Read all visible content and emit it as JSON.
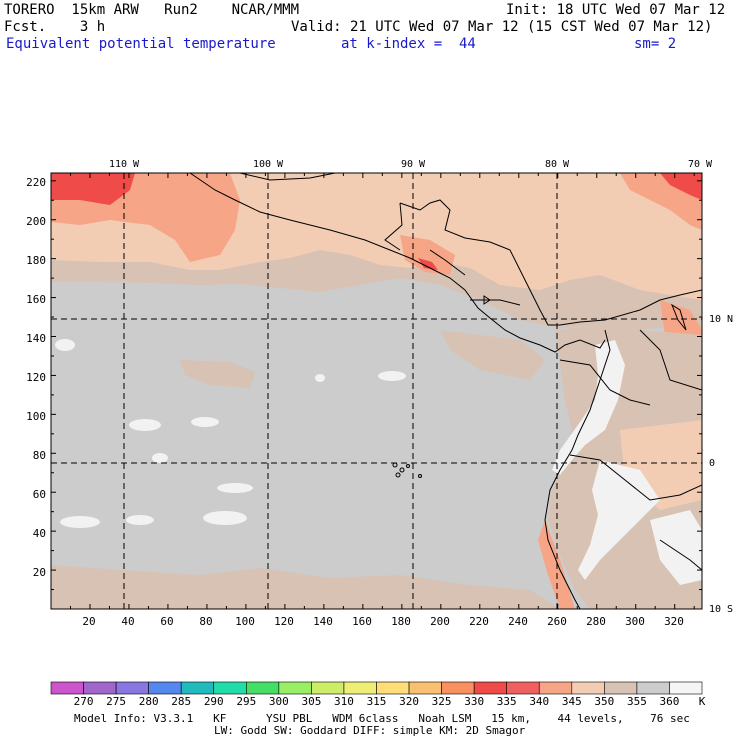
{
  "header": {
    "model": "TORERO  15km ARW   Run2    NCAR/MMM",
    "init": "Init: 18 UTC Wed 07 Mar 12",
    "fcst": "Fcst.    3 h",
    "valid": "Valid: 21 UTC Wed 07 Mar 12 (15 CST Wed 07 Mar 12)",
    "field": "Equivalent potential temperature",
    "level": "at k-index =  44",
    "smooth": "sm= 2"
  },
  "map": {
    "top_labels": [
      "110 W",
      "100 W",
      "90 W",
      "80 W",
      "70 W"
    ],
    "right_labels": [
      "10 N",
      "0",
      "10 S"
    ],
    "y_ticks": [
      "20",
      "40",
      "60",
      "80",
      "100",
      "120",
      "140",
      "160",
      "180",
      "200",
      "220"
    ],
    "x_ticks": [
      "20",
      "40",
      "60",
      "80",
      "100",
      "120",
      "140",
      "160",
      "180",
      "200",
      "220",
      "240",
      "260",
      "280",
      "300",
      "320"
    ],
    "colors": {
      "ocean": "#cccccc",
      "warm_band": "#d8c2b4",
      "peach": "#f2cdb4",
      "salmon": "#f6a587",
      "red": "#ee4b49",
      "white": "#f2f2f2"
    }
  },
  "colorbar": {
    "labels": [
      "270",
      "275",
      "280",
      "285",
      "290",
      "295",
      "300",
      "305",
      "310",
      "315",
      "320",
      "325",
      "330",
      "335",
      "340",
      "345",
      "350",
      "355",
      "360"
    ],
    "unit": "K",
    "colors": [
      "#cc55cc",
      "#a066cc",
      "#8877e0",
      "#5588ee",
      "#22bbbb",
      "#22ddaa",
      "#44dd66",
      "#99ee66",
      "#ccee66",
      "#eeee77",
      "#ffdd77",
      "#f8c070",
      "#f89060",
      "#ee4b49",
      "#f06060",
      "#f6a587",
      "#f2cdb4",
      "#d8c2b4",
      "#cccccc",
      "#f5f5f5"
    ]
  },
  "footer": {
    "line1": "Model Info: V3.3.1   KF      YSU PBL   WDM 6class   Noah LSM   15 km,    44 levels,    76 sec",
    "line2": "LW: Godd SW: Goddard DIFF: simple KM: 2D Smagor"
  }
}
